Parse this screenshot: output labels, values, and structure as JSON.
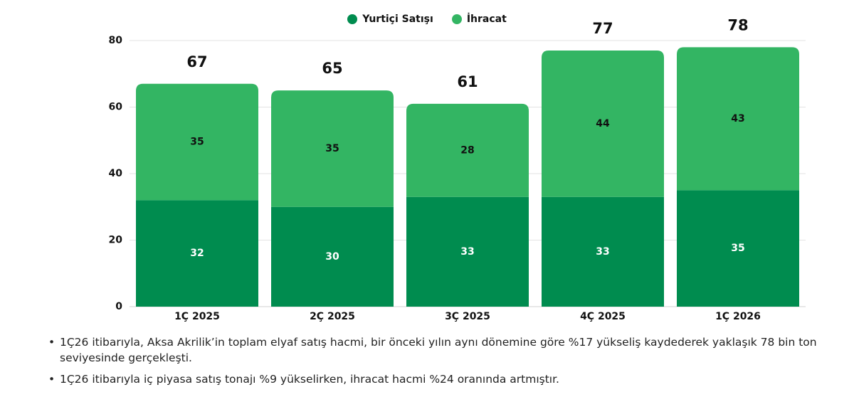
{
  "colors": {
    "domestic": "#008c4f",
    "export": "#33b563"
  },
  "chart_data": {
    "type": "bar",
    "stacked": true,
    "categories": [
      "1Ç 2025",
      "2Ç 2025",
      "3Ç 2025",
      "4Ç 2025",
      "1Ç 2026"
    ],
    "series": [
      {
        "name": "Yurtiçi Satışı",
        "values": [
          32,
          30,
          33,
          33,
          35
        ]
      },
      {
        "name": "İhracat",
        "values": [
          35,
          35,
          28,
          44,
          43
        ]
      }
    ],
    "totals": [
      67,
      65,
      61,
      77,
      78
    ],
    "ylim": [
      0,
      80
    ],
    "yticks": [
      0,
      20,
      40,
      60,
      80
    ],
    "grid": true,
    "legend": "top-center"
  },
  "notes": [
    "1Ç26 itibarıyla, Aksa Akrilik’in toplam elyaf satış hacmi, bir önceki yılın aynı dönemine göre %17 yükseliş kaydederek yaklaşık 78 bin ton seviyesinde gerçekleşti.",
    "1Ç26 itibarıyla iç piyasa satış tonajı %9 yükselirken, ihracat hacmi %24 oranında artmıştır."
  ]
}
